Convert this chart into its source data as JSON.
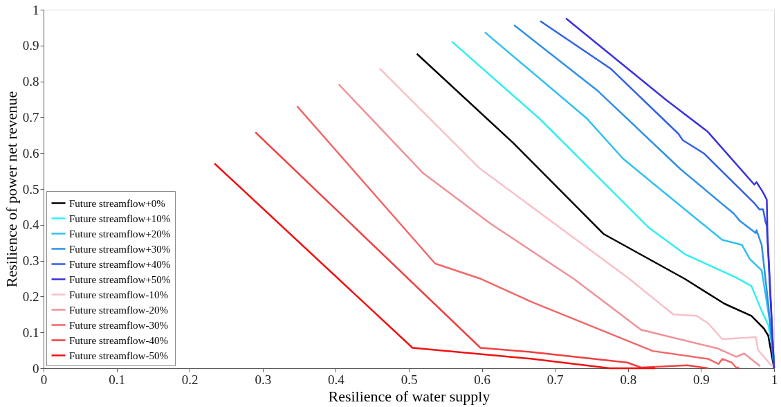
{
  "chart_data": {
    "type": "line",
    "xlabel": "Resilience of water supply",
    "ylabel": "Resilience of power net revenue",
    "xlim": [
      0,
      1
    ],
    "ylim": [
      0,
      1
    ],
    "xticks": [
      0,
      0.1,
      0.2,
      0.3,
      0.4,
      0.5,
      0.6,
      0.7,
      0.8,
      0.9,
      1
    ],
    "yticks": [
      0,
      0.1,
      0.2,
      0.3,
      0.4,
      0.5,
      0.6,
      0.7,
      0.8,
      0.9,
      1
    ],
    "grid": false,
    "legend": "bottom left",
    "line_style": "solid",
    "marker": "none",
    "series": [
      {
        "name": "Future streamflow+0%",
        "color": "#000000",
        "x": [
          0.511,
          0.643,
          0.767,
          0.878,
          0.932,
          0.969,
          0.986,
          0.992,
          1.0
        ],
        "values": [
          0.877,
          0.628,
          0.374,
          0.249,
          0.18,
          0.146,
          0.111,
          0.091,
          0.0
        ]
      },
      {
        "name": "Future streamflow+10%",
        "color": "#30f0f0",
        "x": [
          0.559,
          0.68,
          0.828,
          0.878,
          0.948,
          0.969,
          0.983,
          0.992,
          0.999,
          1.0
        ],
        "values": [
          0.911,
          0.694,
          0.393,
          0.318,
          0.253,
          0.229,
          0.16,
          0.121,
          0.04,
          0.0
        ]
      },
      {
        "name": "Future streamflow+20%",
        "color": "#30c0f0",
        "x": [
          0.604,
          0.743,
          0.793,
          0.828,
          0.929,
          0.956,
          0.967,
          0.983,
          0.988,
          0.995,
          1.0
        ],
        "values": [
          0.937,
          0.698,
          0.585,
          0.526,
          0.358,
          0.344,
          0.304,
          0.273,
          0.21,
          0.12,
          0.0
        ]
      },
      {
        "name": "Future streamflow+30%",
        "color": "#3090e8",
        "x": [
          0.644,
          0.759,
          0.872,
          0.945,
          0.953,
          0.975,
          0.976,
          0.983,
          0.992,
          1.0
        ],
        "values": [
          0.957,
          0.773,
          0.555,
          0.431,
          0.411,
          0.377,
          0.385,
          0.344,
          0.18,
          0.0
        ]
      },
      {
        "name": "Future streamflow+40%",
        "color": "#3060e8",
        "x": [
          0.68,
          0.776,
          0.869,
          0.875,
          0.904,
          0.973,
          0.98,
          0.985,
          0.988,
          0.99,
          1.0
        ],
        "values": [
          0.968,
          0.836,
          0.654,
          0.636,
          0.599,
          0.46,
          0.443,
          0.443,
          0.411,
          0.397,
          0.0
        ]
      },
      {
        "name": "Future streamflow+50%",
        "color": "#3a30e0",
        "x": [
          0.715,
          0.853,
          0.909,
          0.973,
          0.976,
          0.985,
          0.99,
          0.991,
          1.0
        ],
        "values": [
          0.976,
          0.747,
          0.66,
          0.512,
          0.519,
          0.49,
          0.47,
          0.372,
          0.0
        ]
      },
      {
        "name": "Future streamflow-10%",
        "color": "#f8c0c8",
        "x": [
          0.46,
          0.596,
          0.802,
          0.862,
          0.894,
          0.91,
          0.929,
          0.975,
          0.978,
          0.997
        ],
        "values": [
          0.836,
          0.559,
          0.249,
          0.15,
          0.146,
          0.125,
          0.081,
          0.087,
          0.051,
          0.006
        ]
      },
      {
        "name": "Future streamflow-20%",
        "color": "#f09098",
        "x": [
          0.404,
          0.519,
          0.612,
          0.726,
          0.818,
          0.923,
          0.948,
          0.959,
          0.981
        ],
        "values": [
          0.792,
          0.545,
          0.403,
          0.249,
          0.107,
          0.055,
          0.032,
          0.041,
          0.006
        ]
      },
      {
        "name": "Future streamflow-30%",
        "color": "#f06868",
        "x": [
          0.347,
          0.536,
          0.599,
          0.669,
          0.834,
          0.91,
          0.924,
          0.929,
          0.942,
          0.948,
          0.952
        ],
        "values": [
          0.731,
          0.292,
          0.249,
          0.184,
          0.048,
          0.026,
          0.012,
          0.026,
          0.016,
          0.002,
          0.002
        ]
      },
      {
        "name": "Future streamflow-40%",
        "color": "#f04040",
        "x": [
          0.29,
          0.598,
          0.669,
          0.799,
          0.818,
          0.881,
          0.91
        ],
        "values": [
          0.658,
          0.057,
          0.045,
          0.016,
          0.002,
          0.008,
          0.0
        ]
      },
      {
        "name": "Future streamflow-50%",
        "color": "#f01010",
        "x": [
          0.234,
          0.505,
          0.669,
          0.775,
          0.837
        ],
        "values": [
          0.571,
          0.057,
          0.026,
          0.0,
          0.0
        ]
      }
    ]
  }
}
